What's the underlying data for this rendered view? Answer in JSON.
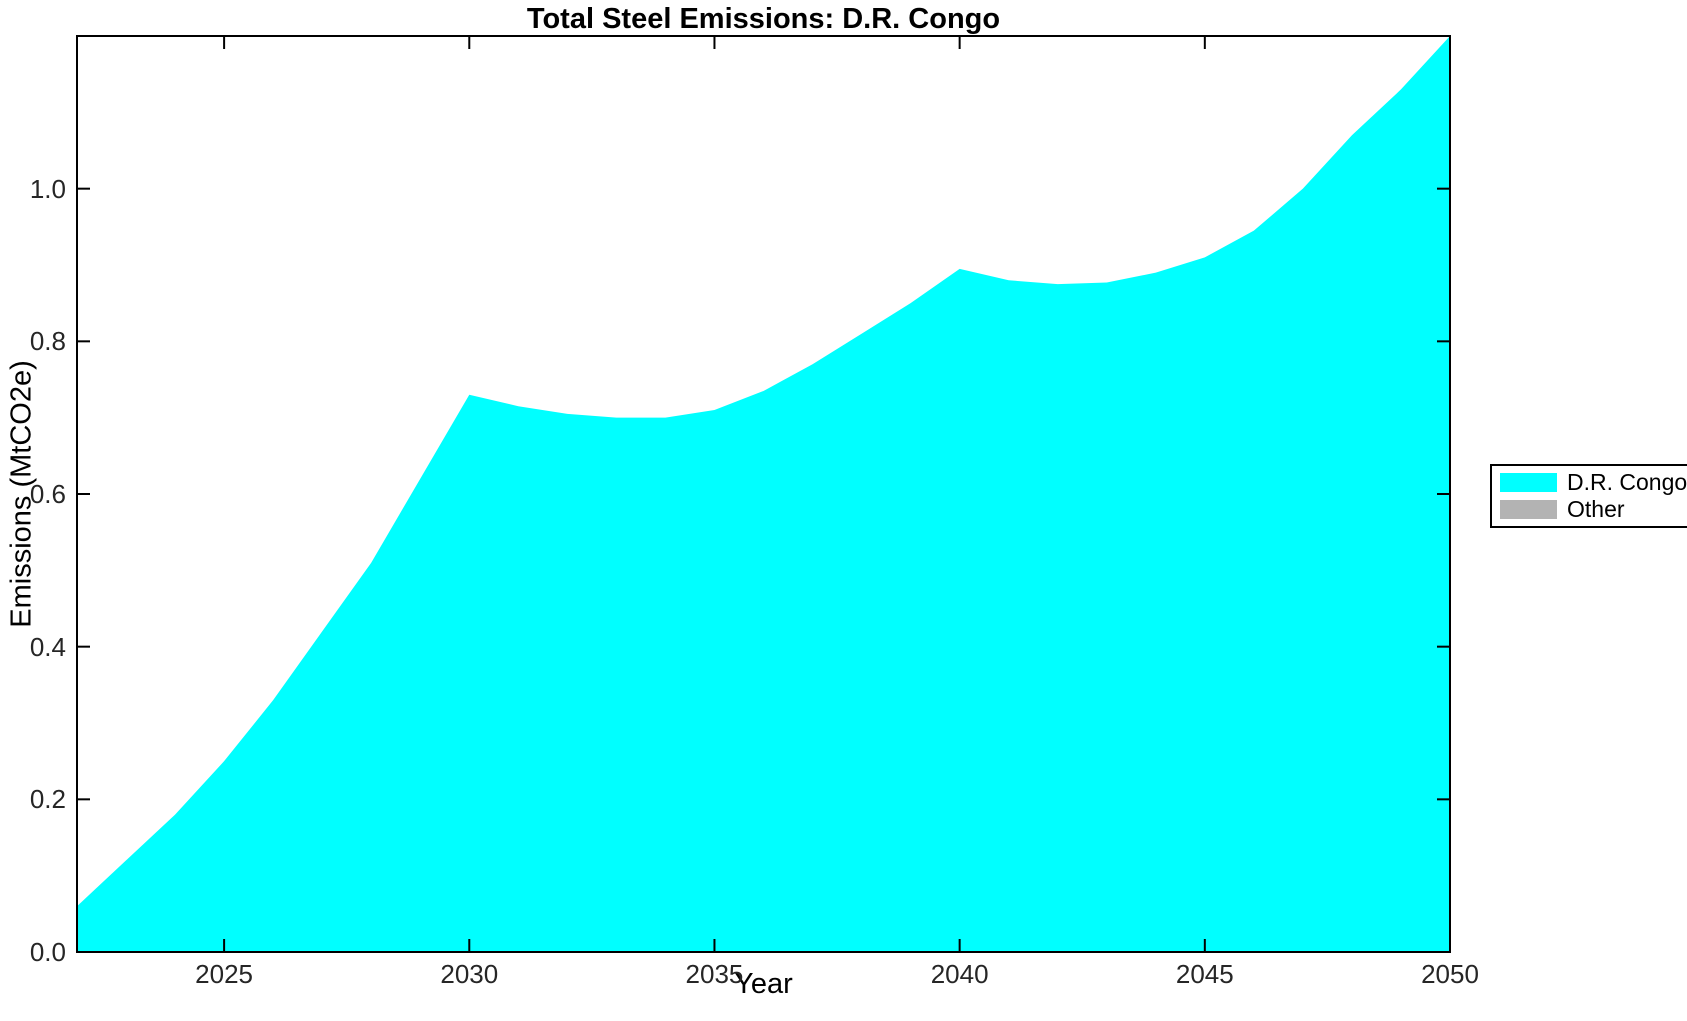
{
  "chart": {
    "title": "Total Steel Emissions: D.R. Congo",
    "xlabel": "Year",
    "ylabel": "Emissions (MtCO2e)"
  },
  "chart_data": {
    "type": "area",
    "title": "Total Steel Emissions: D.R. Congo",
    "xlabel": "Year",
    "ylabel": "Emissions (MtCO2e)",
    "x": [
      2022,
      2023,
      2024,
      2025,
      2026,
      2027,
      2028,
      2029,
      2030,
      2031,
      2032,
      2033,
      2034,
      2035,
      2036,
      2037,
      2038,
      2039,
      2040,
      2041,
      2042,
      2043,
      2044,
      2045,
      2046,
      2047,
      2048,
      2049,
      2050
    ],
    "series": [
      {
        "name": "D.R. Congo",
        "color": "#00FFFF",
        "values": [
          0.06,
          0.12,
          0.18,
          0.25,
          0.33,
          0.42,
          0.51,
          0.62,
          0.73,
          0.715,
          0.705,
          0.7,
          0.7,
          0.71,
          0.735,
          0.77,
          0.81,
          0.85,
          0.895,
          0.88,
          0.875,
          0.877,
          0.89,
          0.91,
          0.945,
          1.0,
          1.07,
          1.13,
          1.2
        ]
      },
      {
        "name": "Other",
        "color": "#B3B3B3",
        "values": [
          0,
          0,
          0,
          0,
          0,
          0,
          0,
          0,
          0,
          0,
          0,
          0,
          0,
          0,
          0,
          0,
          0,
          0,
          0,
          0,
          0,
          0,
          0,
          0,
          0,
          0,
          0,
          0,
          0
        ]
      }
    ],
    "xlim": [
      2022,
      2050
    ],
    "ylim": [
      0,
      1.2
    ],
    "xticks": [
      2025,
      2030,
      2035,
      2040,
      2045,
      2050
    ],
    "xtick_labels": [
      "2025",
      "2030",
      "2035",
      "2040",
      "2045",
      "2050"
    ],
    "yticks": [
      0.0,
      0.2,
      0.4,
      0.6,
      0.8,
      1.0
    ],
    "ytick_labels": [
      "0.0",
      "0.2",
      "0.4",
      "0.6",
      "0.8",
      "1.0"
    ],
    "grid": false,
    "legend_position": "outside-right",
    "frame": "box-with-inward-ticks"
  },
  "legend": {
    "entries": [
      {
        "label": "D.R. Congo",
        "color": "#00FFFF"
      },
      {
        "label": "Other",
        "color": "#B3B3B3"
      }
    ]
  }
}
